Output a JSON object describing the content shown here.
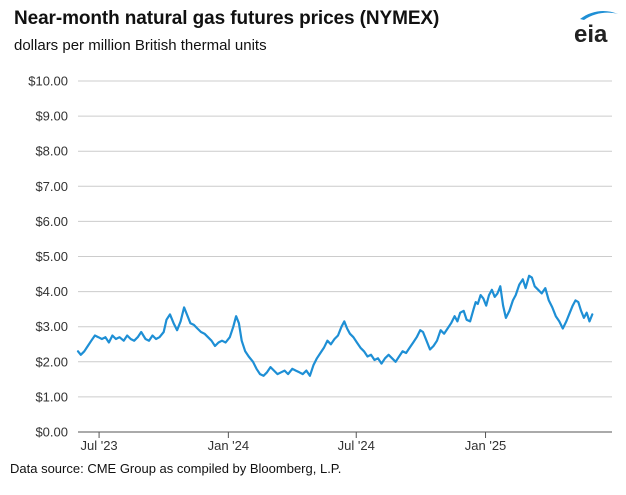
{
  "header": {
    "title": "Near-month natural gas futures prices (NYMEX)",
    "subtitle": "dollars per million British thermal units",
    "logo_text": "eia"
  },
  "footer": {
    "source": "Data source: CME Group as compiled by Bloomberg, L.P."
  },
  "colors": {
    "line": "#1e8fd5",
    "grid": "#cccccc",
    "logo_swoosh": "#1e8fd5",
    "text": "#111111"
  },
  "chart_data": {
    "type": "line",
    "title": "Near-month natural gas futures prices (NYMEX)",
    "subtitle": "dollars per million British thermal units",
    "xlabel": "",
    "ylabel": "",
    "ylim": [
      0,
      10
    ],
    "xlim": [
      "2023-06-01",
      "2025-06-30"
    ],
    "grid": "horizontal",
    "legend": "none",
    "y_ticks": [
      "$0.00",
      "$1.00",
      "$2.00",
      "$3.00",
      "$4.00",
      "$5.00",
      "$6.00",
      "$7.00",
      "$8.00",
      "$9.00",
      "$10.00"
    ],
    "x_ticks": [
      {
        "date": "2023-07-01",
        "label": "Jul '23"
      },
      {
        "date": "2024-01-01",
        "label": "Jan '24"
      },
      {
        "date": "2024-07-01",
        "label": "Jul '24"
      },
      {
        "date": "2025-01-01",
        "label": "Jan '25"
      }
    ],
    "series": [
      {
        "points": [
          [
            "2023-06-01",
            2.3
          ],
          [
            "2023-06-05",
            2.2
          ],
          [
            "2023-06-10",
            2.3
          ],
          [
            "2023-06-15",
            2.45
          ],
          [
            "2023-06-20",
            2.6
          ],
          [
            "2023-06-25",
            2.75
          ],
          [
            "2023-06-30",
            2.7
          ],
          [
            "2023-07-05",
            2.65
          ],
          [
            "2023-07-10",
            2.7
          ],
          [
            "2023-07-15",
            2.55
          ],
          [
            "2023-07-20",
            2.75
          ],
          [
            "2023-07-25",
            2.65
          ],
          [
            "2023-07-30",
            2.7
          ],
          [
            "2023-08-05",
            2.6
          ],
          [
            "2023-08-10",
            2.75
          ],
          [
            "2023-08-15",
            2.65
          ],
          [
            "2023-08-20",
            2.6
          ],
          [
            "2023-08-25",
            2.7
          ],
          [
            "2023-08-30",
            2.85
          ],
          [
            "2023-09-05",
            2.65
          ],
          [
            "2023-09-10",
            2.6
          ],
          [
            "2023-09-15",
            2.75
          ],
          [
            "2023-09-20",
            2.65
          ],
          [
            "2023-09-25",
            2.7
          ],
          [
            "2023-10-01",
            2.85
          ],
          [
            "2023-10-05",
            3.2
          ],
          [
            "2023-10-10",
            3.35
          ],
          [
            "2023-10-15",
            3.1
          ],
          [
            "2023-10-20",
            2.9
          ],
          [
            "2023-10-25",
            3.15
          ],
          [
            "2023-10-30",
            3.55
          ],
          [
            "2023-11-03",
            3.35
          ],
          [
            "2023-11-08",
            3.1
          ],
          [
            "2023-11-13",
            3.05
          ],
          [
            "2023-11-18",
            2.95
          ],
          [
            "2023-11-23",
            2.85
          ],
          [
            "2023-11-28",
            2.8
          ],
          [
            "2023-12-03",
            2.7
          ],
          [
            "2023-12-08",
            2.6
          ],
          [
            "2023-12-13",
            2.45
          ],
          [
            "2023-12-18",
            2.55
          ],
          [
            "2023-12-23",
            2.6
          ],
          [
            "2023-12-28",
            2.55
          ],
          [
            "2024-01-03",
            2.7
          ],
          [
            "2024-01-08",
            3.0
          ],
          [
            "2024-01-12",
            3.3
          ],
          [
            "2024-01-16",
            3.1
          ],
          [
            "2024-01-20",
            2.6
          ],
          [
            "2024-01-25",
            2.3
          ],
          [
            "2024-01-30",
            2.15
          ],
          [
            "2024-02-05",
            2.0
          ],
          [
            "2024-02-10",
            1.8
          ],
          [
            "2024-02-15",
            1.65
          ],
          [
            "2024-02-20",
            1.6
          ],
          [
            "2024-02-25",
            1.7
          ],
          [
            "2024-03-01",
            1.85
          ],
          [
            "2024-03-06",
            1.75
          ],
          [
            "2024-03-11",
            1.65
          ],
          [
            "2024-03-16",
            1.7
          ],
          [
            "2024-03-21",
            1.75
          ],
          [
            "2024-03-26",
            1.65
          ],
          [
            "2024-04-01",
            1.8
          ],
          [
            "2024-04-06",
            1.75
          ],
          [
            "2024-04-11",
            1.7
          ],
          [
            "2024-04-16",
            1.65
          ],
          [
            "2024-04-21",
            1.75
          ],
          [
            "2024-04-26",
            1.6
          ],
          [
            "2024-05-01",
            1.9
          ],
          [
            "2024-05-06",
            2.1
          ],
          [
            "2024-05-11",
            2.25
          ],
          [
            "2024-05-16",
            2.4
          ],
          [
            "2024-05-21",
            2.6
          ],
          [
            "2024-05-26",
            2.5
          ],
          [
            "2024-05-31",
            2.65
          ],
          [
            "2024-06-05",
            2.75
          ],
          [
            "2024-06-10",
            3.0
          ],
          [
            "2024-06-14",
            3.15
          ],
          [
            "2024-06-18",
            2.95
          ],
          [
            "2024-06-22",
            2.8
          ],
          [
            "2024-06-27",
            2.7
          ],
          [
            "2024-07-02",
            2.55
          ],
          [
            "2024-07-07",
            2.4
          ],
          [
            "2024-07-12",
            2.3
          ],
          [
            "2024-07-17",
            2.15
          ],
          [
            "2024-07-22",
            2.2
          ],
          [
            "2024-07-27",
            2.05
          ],
          [
            "2024-08-01",
            2.1
          ],
          [
            "2024-08-06",
            1.95
          ],
          [
            "2024-08-11",
            2.1
          ],
          [
            "2024-08-16",
            2.2
          ],
          [
            "2024-08-21",
            2.1
          ],
          [
            "2024-08-26",
            2.0
          ],
          [
            "2024-08-31",
            2.15
          ],
          [
            "2024-09-05",
            2.3
          ],
          [
            "2024-09-10",
            2.25
          ],
          [
            "2024-09-15",
            2.4
          ],
          [
            "2024-09-20",
            2.55
          ],
          [
            "2024-09-25",
            2.7
          ],
          [
            "2024-09-30",
            2.9
          ],
          [
            "2024-10-04",
            2.85
          ],
          [
            "2024-10-09",
            2.6
          ],
          [
            "2024-10-14",
            2.35
          ],
          [
            "2024-10-19",
            2.45
          ],
          [
            "2024-10-24",
            2.6
          ],
          [
            "2024-10-29",
            2.9
          ],
          [
            "2024-11-03",
            2.8
          ],
          [
            "2024-11-08",
            2.95
          ],
          [
            "2024-11-13",
            3.1
          ],
          [
            "2024-11-18",
            3.3
          ],
          [
            "2024-11-22",
            3.15
          ],
          [
            "2024-11-26",
            3.4
          ],
          [
            "2024-12-01",
            3.45
          ],
          [
            "2024-12-05",
            3.2
          ],
          [
            "2024-12-10",
            3.15
          ],
          [
            "2024-12-15",
            3.5
          ],
          [
            "2024-12-18",
            3.7
          ],
          [
            "2024-12-21",
            3.65
          ],
          [
            "2024-12-25",
            3.9
          ],
          [
            "2024-12-29",
            3.8
          ],
          [
            "2025-01-02",
            3.6
          ],
          [
            "2025-01-06",
            3.9
          ],
          [
            "2025-01-10",
            4.05
          ],
          [
            "2025-01-14",
            3.85
          ],
          [
            "2025-01-18",
            3.95
          ],
          [
            "2025-01-22",
            4.15
          ],
          [
            "2025-01-26",
            3.6
          ],
          [
            "2025-01-30",
            3.25
          ],
          [
            "2025-02-04",
            3.45
          ],
          [
            "2025-02-09",
            3.75
          ],
          [
            "2025-02-13",
            3.9
          ],
          [
            "2025-02-18",
            4.2
          ],
          [
            "2025-02-23",
            4.35
          ],
          [
            "2025-02-27",
            4.1
          ],
          [
            "2025-03-04",
            4.45
          ],
          [
            "2025-03-08",
            4.4
          ],
          [
            "2025-03-12",
            4.15
          ],
          [
            "2025-03-17",
            4.05
          ],
          [
            "2025-03-22",
            3.95
          ],
          [
            "2025-03-27",
            4.1
          ],
          [
            "2025-04-01",
            3.75
          ],
          [
            "2025-04-06",
            3.55
          ],
          [
            "2025-04-11",
            3.3
          ],
          [
            "2025-04-16",
            3.15
          ],
          [
            "2025-04-21",
            2.95
          ],
          [
            "2025-04-26",
            3.15
          ],
          [
            "2025-05-01",
            3.4
          ],
          [
            "2025-05-05",
            3.6
          ],
          [
            "2025-05-09",
            3.75
          ],
          [
            "2025-05-13",
            3.7
          ],
          [
            "2025-05-17",
            3.45
          ],
          [
            "2025-05-21",
            3.25
          ],
          [
            "2025-05-25",
            3.4
          ],
          [
            "2025-05-29",
            3.15
          ],
          [
            "2025-06-02",
            3.35
          ]
        ]
      }
    ]
  }
}
